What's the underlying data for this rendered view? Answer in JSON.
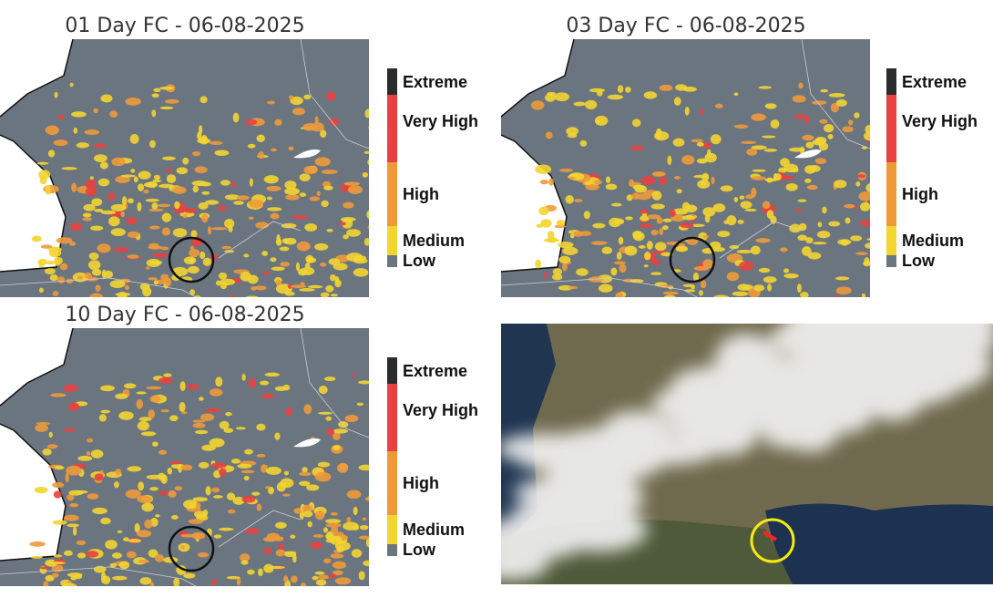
{
  "panels": [
    {
      "title": "01 Day FC - 06-08-2025"
    },
    {
      "title": "03 Day FC - 06-08-2025"
    },
    {
      "title": "10 Day FC - 06-08-2025"
    }
  ],
  "legend": [
    {
      "label": "Extreme",
      "color": "#2b2b2b"
    },
    {
      "label": "Very High",
      "color": "#e8413f"
    },
    {
      "label": "High",
      "color": "#ee9a3b"
    },
    {
      "label": "Medium",
      "color": "#f3d531"
    },
    {
      "label": "Low",
      "color": "#6b7580"
    }
  ]
}
